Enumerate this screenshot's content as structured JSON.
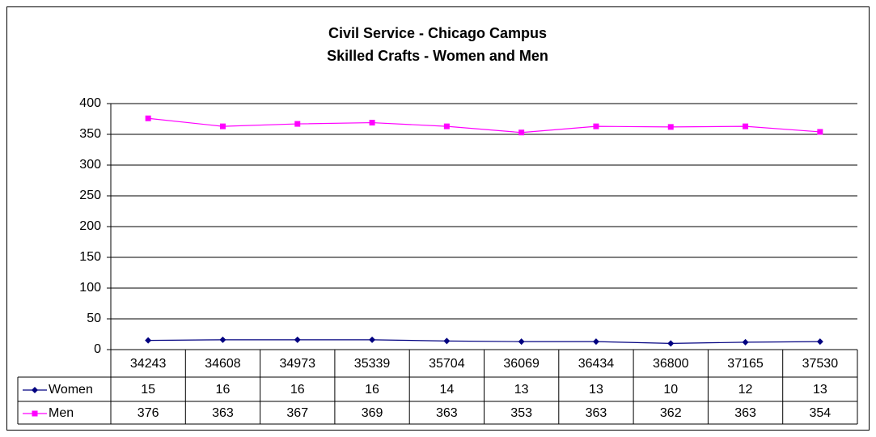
{
  "chart_data": {
    "type": "line",
    "title": "Civil Service - Chicago Campus",
    "subtitle": "Skilled Crafts - Women and Men",
    "categories": [
      "34243",
      "34608",
      "34973",
      "35339",
      "35704",
      "36069",
      "36434",
      "36800",
      "37165",
      "37530"
    ],
    "series": [
      {
        "name": "Women",
        "color": "#000080",
        "marker": "diamond",
        "values": [
          15,
          16,
          16,
          16,
          14,
          13,
          13,
          10,
          12,
          13
        ]
      },
      {
        "name": "Men",
        "color": "#ff00ff",
        "marker": "square",
        "values": [
          376,
          363,
          367,
          369,
          363,
          353,
          363,
          362,
          363,
          354
        ]
      }
    ],
    "ylim": [
      0,
      400
    ],
    "yticks": [
      0,
      50,
      100,
      150,
      200,
      250,
      300,
      350,
      400
    ],
    "grid": true
  }
}
